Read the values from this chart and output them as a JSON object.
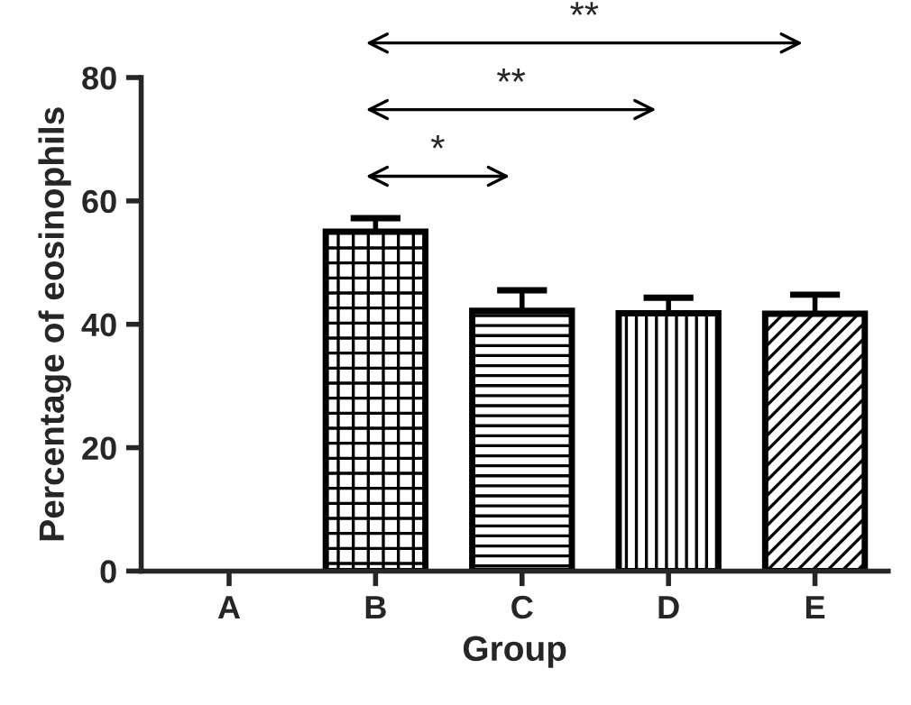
{
  "chart_data": {
    "type": "bar",
    "xlabel": "Group",
    "ylabel": "Percentage of eosinophils",
    "categories": [
      "A",
      "B",
      "C",
      "D",
      "E"
    ],
    "values": [
      null,
      55,
      42.2,
      41.8,
      41.7
    ],
    "errors": [
      null,
      [
        55,
        57.2
      ],
      [
        42.2,
        45.5
      ],
      [
        41.8,
        44.3
      ],
      [
        41.7,
        44.8
      ]
    ],
    "color": "#000000",
    "ylim": [
      0,
      80
    ],
    "yticks": [
      0,
      20,
      40,
      60,
      80
    ],
    "grid": false,
    "annotations": [
      "*",
      "**",
      "**"
    ]
  }
}
